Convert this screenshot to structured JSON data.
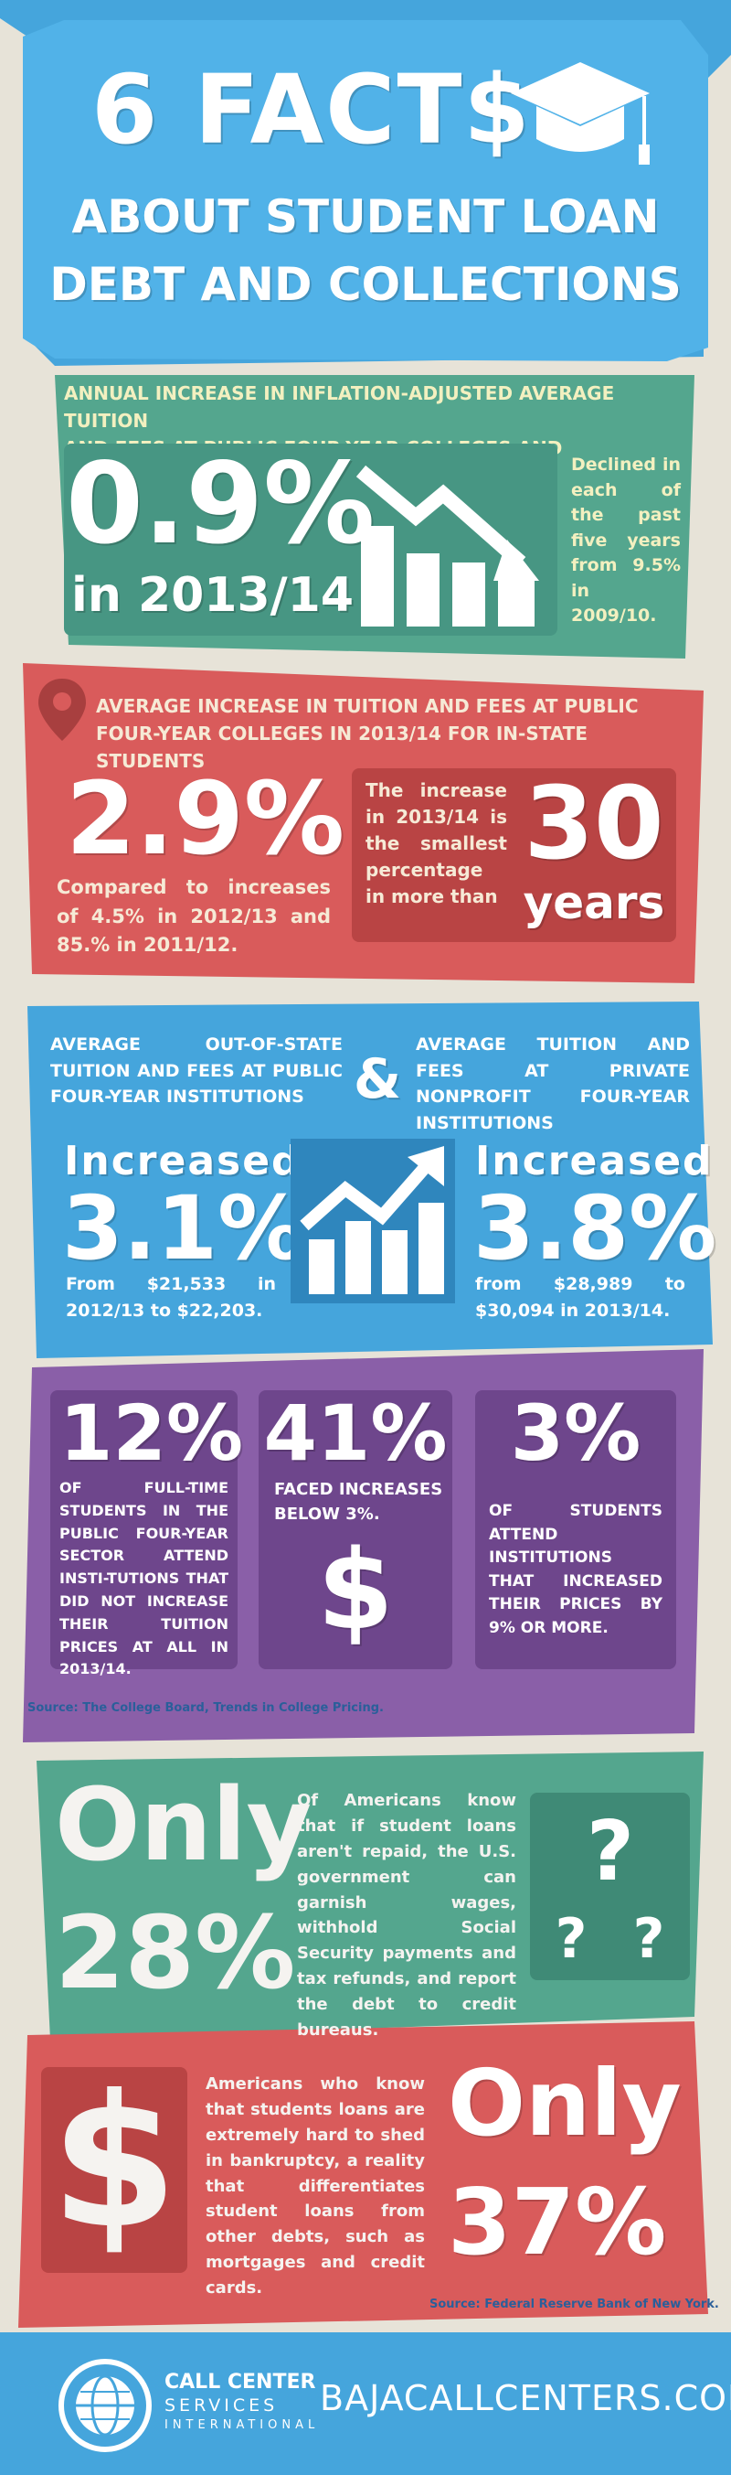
{
  "header": {
    "title": "6 FACT$",
    "subtitle_line1": "ABOUT STUDENT LOAN",
    "subtitle_line2": "DEBT AND COLLECTIONS"
  },
  "fact1": {
    "heading_line1": "ANNUAL INCREASE IN INFLATION-ADJUSTED AVERAGE TUITION",
    "heading_line2": "AND FEES AT PUBLIC FOUR-YEAR COLLEGES AND UNIVERSITIES",
    "big_value": "0.9%",
    "big_year": "in 2013/14",
    "note": "Declined in each of the past five years from 9.5% in 2009/10."
  },
  "fact2": {
    "heading_line1": "AVERAGE INCREASE IN TUITION AND FEES AT PUBLIC",
    "heading_line2": "FOUR-YEAR COLLEGES IN 2013/14 FOR IN-STATE STUDENTS",
    "big_value": "2.9%",
    "compare": "Compared to increases of 4.5% in 2012/13 and 85.% in 2011/12.",
    "side_text": "The increase in 2013/14 is the smallest percentage in more than",
    "side_number": "30",
    "side_unit": "years"
  },
  "fact3": {
    "left_heading": "AVERAGE OUT-OF-STATE TUITION AND FEES AT PUBLIC FOUR-YEAR INSTITUTIONS",
    "ampersand": "&",
    "right_heading": "AVERAGE TUITION AND FEES AT PRIVATE NONPROFIT FOUR-YEAR INSTITUTIONS",
    "left_label": "Increased",
    "left_value": "3.1%",
    "left_note": "From $21,533 in 2012/13 to $22,203.",
    "right_label": "Increased",
    "right_value": "3.8%",
    "right_note": "from $28,989 to $30,094 in 2013/14."
  },
  "fact4": {
    "c1_value": "12%",
    "c1_text": "OF FULL-TIME STUDENTS IN THE PUBLIC FOUR-YEAR SECTOR ATTEND INSTI-TUTIONS THAT DID NOT INCREASE THEIR TUITION PRICES AT ALL IN 2013/14.",
    "c2_value": "41%",
    "c2_text": "FACED INCREASES BELOW 3%.",
    "c2_symbol": "$",
    "c3_value": "3%",
    "c3_text": "OF STUDENTS ATTEND INSTITUTIONS THAT INCREASED THEIR PRICES BY 9% OR MORE.",
    "source": "Source: The College Board, Trends in College Pricing."
  },
  "fact5": {
    "only": "Only",
    "value": "28%",
    "text": "Of Americans know that if student loans aren't repaid, the U.S. government can garnish wages, withhold Social Security payments and tax refunds, and report the debt to credit bureaus.",
    "symbols": "? ? ?"
  },
  "fact6": {
    "only": "Only",
    "value": "37%",
    "symbol": "$",
    "text": "Americans who know that students loans are extremely hard to shed in bankruptcy, a reality that differentiates student loans from other debts, such as mortgages and credit cards.",
    "source": "Source: Federal Reserve Bank of New York."
  },
  "footer": {
    "logo_line1": "CALL CENTER",
    "logo_line2": "SERVICES",
    "logo_line3": "INTERNATIONAL",
    "url": "BAJACALLCENTERS.COM"
  },
  "colors": {
    "blue": "#45a5dc",
    "teal": "#4fa48a",
    "red": "#d95b5b",
    "purple": "#8a5fa8",
    "bg": "#e7e3d8"
  }
}
